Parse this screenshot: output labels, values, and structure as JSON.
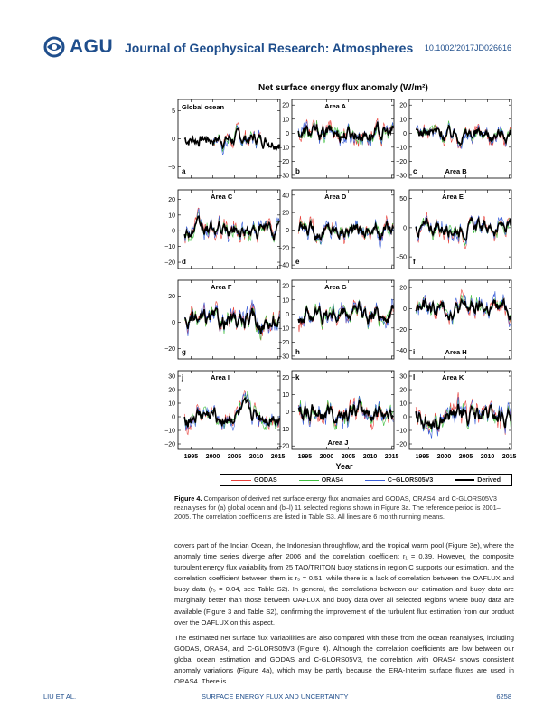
{
  "header": {
    "logo_text": "AGU",
    "journal": "Journal of Geophysical Research: Atmospheres",
    "doi": "10.1002/2017JD026616"
  },
  "figure": {
    "title": "Net surface energy flux anomaly (W/m²)",
    "xlabel": "Year",
    "x_ticks": [
      "1995",
      "2000",
      "2005",
      "2010",
      "2015"
    ],
    "colors": {
      "GODAS": "#e8403a",
      "ORAS4": "#3fbf3f",
      "C-GLORS05V3": "#3a5fd9",
      "Derived": "#000000"
    },
    "legend": [
      {
        "name": "GODAS",
        "color": "#e8403a",
        "width": 1
      },
      {
        "name": "ORAS4",
        "color": "#3fbf3f",
        "width": 1
      },
      {
        "name": "C−GLORS05V3",
        "color": "#3a5fd9",
        "width": 1
      },
      {
        "name": "Derived",
        "color": "#000000",
        "width": 2.2
      }
    ],
    "panels": [
      {
        "letter": "a",
        "area": "Global ocean",
        "yticks": [
          "5",
          "0",
          "−5"
        ],
        "yvals": [
          5,
          0,
          -5
        ],
        "ylim": [
          -7,
          7
        ],
        "area_pos": "top-left",
        "amp": 2
      },
      {
        "letter": "b",
        "area": "Area A",
        "yticks": [
          "20",
          "10",
          "0",
          "−10",
          "−20",
          "−30"
        ],
        "yvals": [
          20,
          10,
          0,
          -10,
          -20,
          -30
        ],
        "ylim": [
          -32,
          24
        ],
        "area_pos": "top",
        "amp": 9
      },
      {
        "letter": "c",
        "area": "Area B",
        "yticks": [
          "20",
          "10",
          "0",
          "−10",
          "−20",
          "−30"
        ],
        "yvals": [
          20,
          10,
          0,
          -10,
          -20,
          -30
        ],
        "ylim": [
          -32,
          24
        ],
        "area_pos": "bottom",
        "amp": 8
      },
      {
        "letter": "d",
        "area": "Area C",
        "yticks": [
          "20",
          "10",
          "0",
          "−10",
          "−20"
        ],
        "yvals": [
          20,
          10,
          0,
          -10,
          -20
        ],
        "ylim": [
          -24,
          26
        ],
        "area_pos": "top",
        "amp": 8
      },
      {
        "letter": "e",
        "area": "Area D",
        "yticks": [
          "40",
          "20",
          "0",
          "−20",
          "−40"
        ],
        "yvals": [
          40,
          20,
          0,
          -20,
          -40
        ],
        "ylim": [
          -44,
          46
        ],
        "area_pos": "top",
        "amp": 14
      },
      {
        "letter": "f",
        "area": "Area E",
        "yticks": [
          "50",
          "0",
          "−50"
        ],
        "yvals": [
          50,
          0,
          -50
        ],
        "ylim": [
          -70,
          65
        ],
        "area_pos": "top",
        "amp": 20
      },
      {
        "letter": "g",
        "area": "Area F",
        "yticks": [
          "20",
          "0",
          "−20"
        ],
        "yvals": [
          20,
          0,
          -20
        ],
        "ylim": [
          -28,
          32
        ],
        "area_pos": "top",
        "amp": 11
      },
      {
        "letter": "h",
        "area": "Area G",
        "yticks": [
          "20",
          "10",
          "0",
          "−10",
          "−20",
          "−30"
        ],
        "yvals": [
          20,
          10,
          0,
          -10,
          -20,
          -30
        ],
        "ylim": [
          -32,
          24
        ],
        "area_pos": "top",
        "amp": 10
      },
      {
        "letter": "i",
        "area": "Area H",
        "yticks": [
          "20",
          "0",
          "−20",
          "−40"
        ],
        "yvals": [
          20,
          0,
          -20,
          -40
        ],
        "ylim": [
          -48,
          27
        ],
        "area_pos": "bottom",
        "amp": 13
      },
      {
        "letter": "j",
        "area": "Area I",
        "yticks": [
          "30",
          "20",
          "10",
          "0",
          "−10",
          "−20"
        ],
        "yvals": [
          30,
          20,
          10,
          0,
          -10,
          -20
        ],
        "ylim": [
          -24,
          34
        ],
        "area_pos": "top",
        "amp": 10
      },
      {
        "letter": "k",
        "area": "Area J",
        "yticks": [
          "20",
          "10",
          "0",
          "−10",
          "−20"
        ],
        "yvals": [
          20,
          10,
          0,
          -10,
          -20
        ],
        "ylim": [
          -22,
          24
        ],
        "area_pos": "bottom",
        "amp": 9
      },
      {
        "letter": "l",
        "area": "Area K",
        "yticks": [
          "30",
          "20",
          "10",
          "0",
          "−10",
          "−20"
        ],
        "yvals": [
          30,
          20,
          10,
          0,
          -10,
          -20
        ],
        "ylim": [
          -24,
          34
        ],
        "area_pos": "top",
        "amp": 11
      }
    ]
  },
  "caption": {
    "label": "Figure 4.",
    "text": " Comparison of derived net surface energy flux anomalies and GODAS, ORAS4, and C-GLORS05V3 reanalyses for (a) global ocean and (b–l) 11 selected regions shown in Figure 3a. The reference period is 2001–2005. The correlation coefficients are listed in Table S3. All lines are 6 month running means."
  },
  "body": {
    "p1": "covers part of the Indian Ocean, the Indonesian throughflow, and the tropical warm pool (Figure 3e), where the anomaly time series diverge after 2006 and the correlation coefficient r₁ = 0.39. However, the composite turbulent energy flux variability from 25 TAO/TRITON buoy stations in region C supports our estimation, and the correlation coefficient between them is r₅ = 0.51, while there is a lack of correlation between the OAFLUX and buoy data (r₅ = 0.04, see Table S2). In general, the correlations between our estimation and buoy data are marginally better than those between OAFLUX and buoy data over all selected regions where buoy data are available (Figure 3 and Table S2), confirming the improvement of the turbulent flux estimation from our product over the OAFLUX on this aspect.",
    "p2": "The estimated net surface flux variabilities are also compared with those from the ocean reanalyses, including GODAS, ORAS4, and C-GLORS05V3 (Figure 4). Although the correlation coefficients are low between our global ocean estimation and GODAS and C-GLORS05V3, the correlation with ORAS4 shows consistent anomaly variations (Figure 4a), which may be partly because the ERA-Interim surface fluxes are used in ORAS4. There is"
  },
  "footer": {
    "left": "LIU ET AL.",
    "center": "SURFACE ENERGY FLUX AND UNCERTAINTY",
    "right": "6258"
  }
}
